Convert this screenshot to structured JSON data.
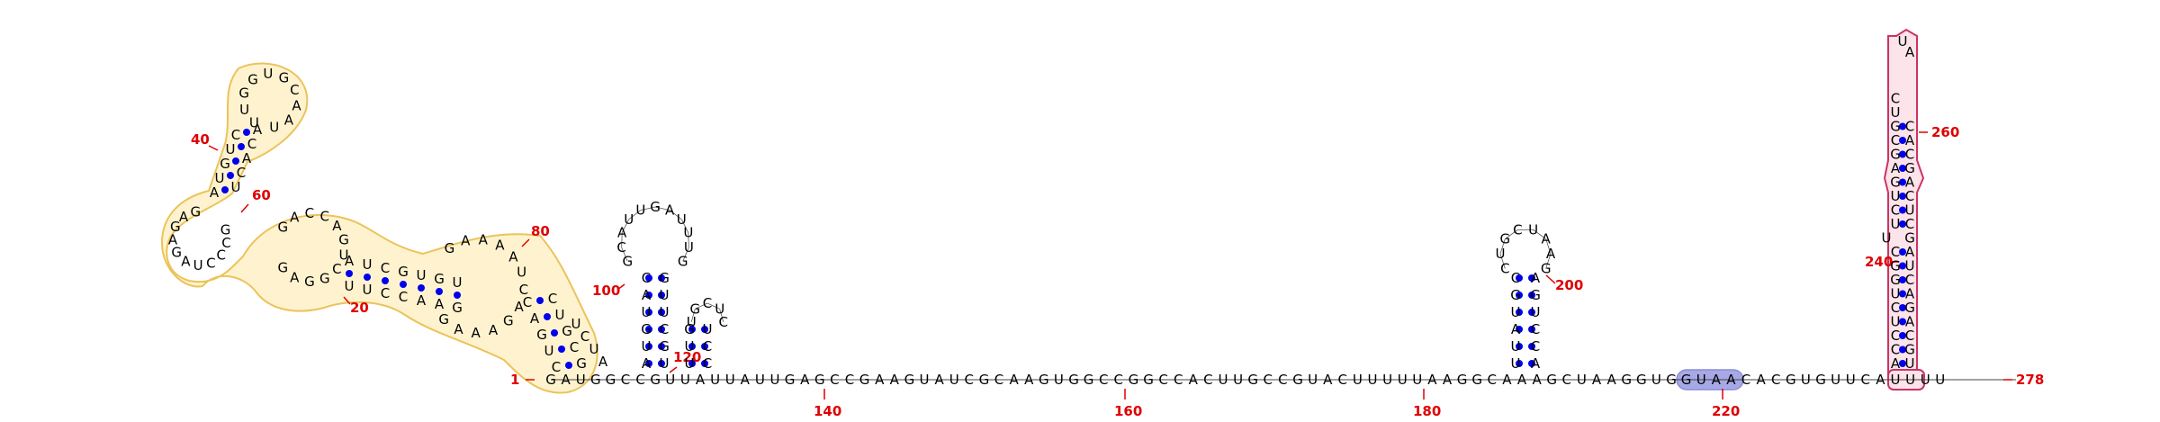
{
  "sequence": "GAUGGCCGUUAUUAUUGAGCCGAAGUAUCGCAAGUGGCCGGCCACUUGCCGUACUUUUUAAGGCAAAGCUAAGGUGGUAACACGUGUUCAUUUU",
  "colors": {
    "paired_dot": "#0000ee",
    "index_label": "#e00000",
    "highlight_yellow_fill": "#fff3cf",
    "highlight_yellow_stroke": "#ecc35a",
    "highlight_pink_fill": "#fde4ea",
    "highlight_pink_stroke": "#cc3366",
    "highlight_blue_fill": "#a7a9e6"
  },
  "index_labels": [
    {
      "text": "1",
      "near": "start"
    },
    {
      "text": "20",
      "near": "left-domain-bottom"
    },
    {
      "text": "40",
      "near": "upper-left-hairpin"
    },
    {
      "text": "60",
      "near": "left-junction"
    },
    {
      "text": "80",
      "near": "left-domain-right"
    },
    {
      "text": "100",
      "near": "hairpin-1"
    },
    {
      "text": "120",
      "near": "hairpin-2"
    },
    {
      "text": "140",
      "near": "backbone"
    },
    {
      "text": "160",
      "near": "backbone"
    },
    {
      "text": "180",
      "near": "backbone"
    },
    {
      "text": "200",
      "near": "hairpin-3"
    },
    {
      "text": "220",
      "near": "backbone"
    },
    {
      "text": "240",
      "near": "tall-stem"
    },
    {
      "text": "260",
      "near": "tall-stem"
    },
    {
      "text": "278",
      "near": "end"
    }
  ],
  "hairpin1": {
    "stem_left": "AUGUAC",
    "stem_right": "GUUCGU",
    "loop": "GCAUUGAUUUG"
  },
  "hairpin2": {
    "stem_left": "UUG",
    "stem_right": "UCC",
    "loop": "UGCUC"
  },
  "hairpin3": {
    "stem_left": "UUAUGC",
    "stem_right": "AGUCCA",
    "loop": "CUGCUAAG"
  },
  "hairpin4": {
    "stem_left": "ACCUCUGGCUUCUGAGCGUC",
    "stem_right": "UGCAGACUAGCUCAGCAC",
    "loop": "UA"
  }
}
